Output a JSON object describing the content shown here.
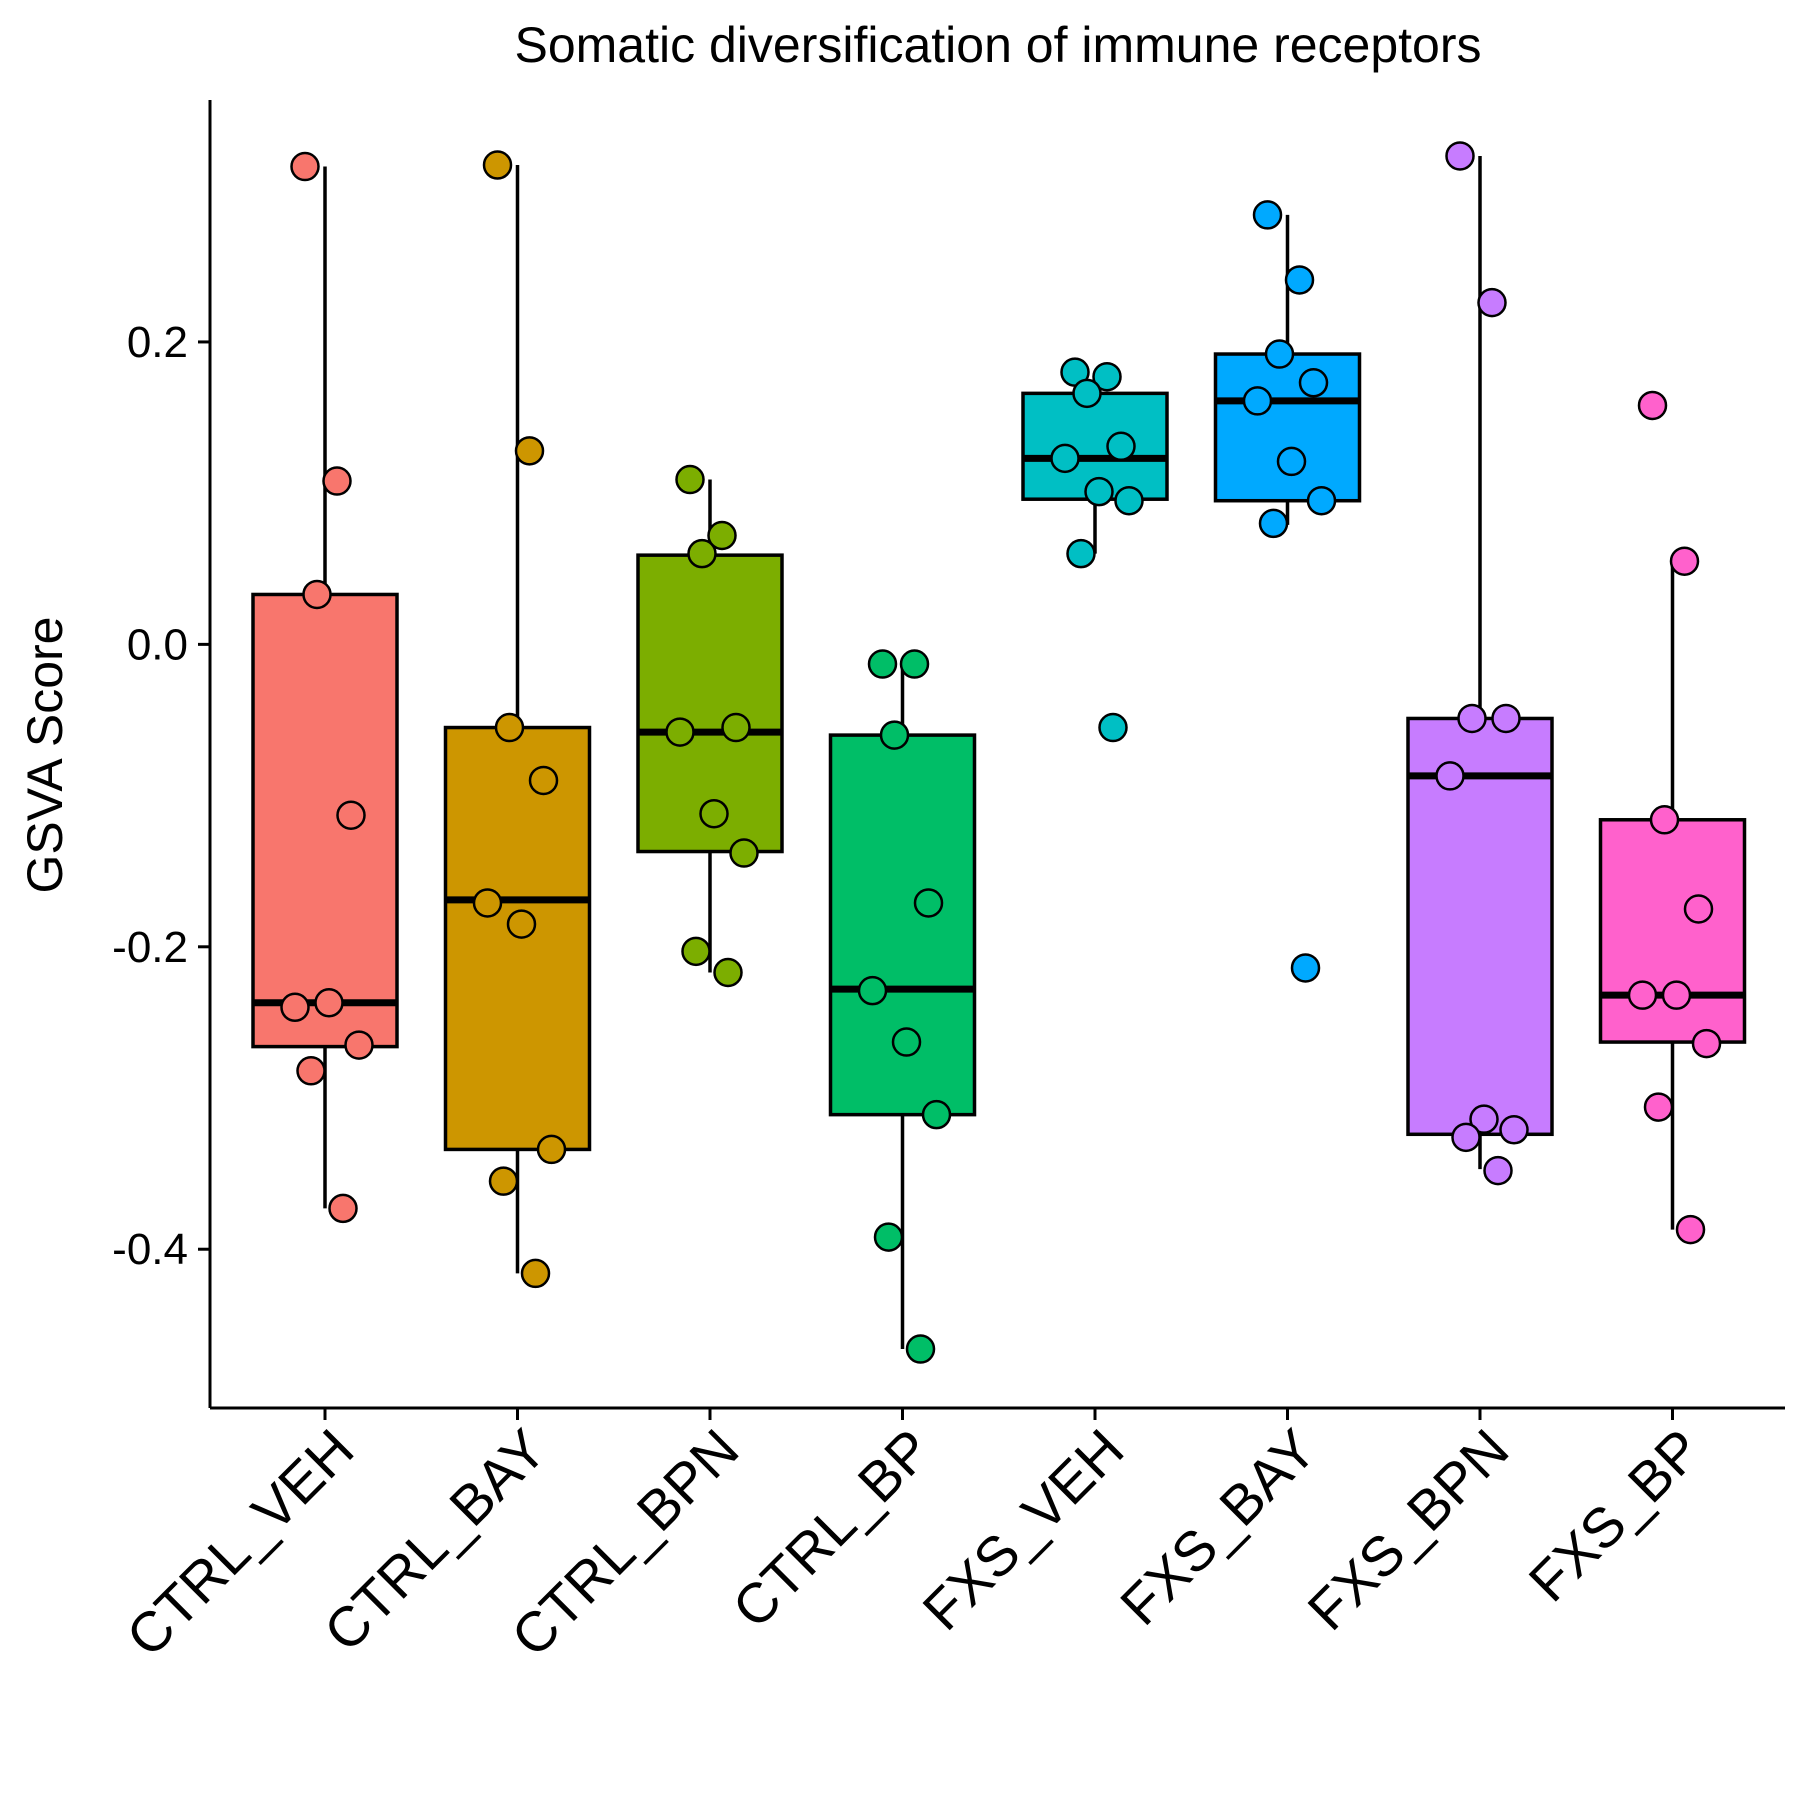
{
  "chart_data": {
    "type": "box",
    "title": "Somatic diversification of immune receptors",
    "xlabel": "",
    "ylabel": "GSVA Score",
    "ylim": [
      -0.505,
      0.36
    ],
    "yticks": [
      0.2,
      0.0,
      -0.2,
      -0.4
    ],
    "ytick_labels": [
      "0.2",
      "0.0",
      "-0.2",
      "-0.4"
    ],
    "grid": false,
    "legend": "none",
    "categories": [
      "CTRL_VEH",
      "CTRL_BAY",
      "CTRL_BPN",
      "CTRL_BP",
      "FXS_VEH",
      "FXS_BAY",
      "FXS_BPN",
      "FXS_BP"
    ],
    "colors": [
      "#F8766D",
      "#CD9600",
      "#7CAE00",
      "#00BE67",
      "#00BFC4",
      "#00A9FF",
      "#C77CFF",
      "#FF61CC"
    ],
    "boxes": [
      {
        "whisker_low": -0.373,
        "q1": -0.266,
        "median": -0.237,
        "q3": 0.033,
        "whisker_high": 0.316
      },
      {
        "whisker_low": -0.416,
        "q1": -0.334,
        "median": -0.169,
        "q3": -0.055,
        "whisker_high": 0.317
      },
      {
        "whisker_low": -0.217,
        "q1": -0.137,
        "median": -0.058,
        "q3": 0.059,
        "whisker_high": 0.109
      },
      {
        "whisker_low": -0.466,
        "q1": -0.311,
        "median": -0.228,
        "q3": -0.06,
        "whisker_high": -0.013
      },
      {
        "whisker_low": 0.06,
        "q1": 0.096,
        "median": 0.123,
        "q3": 0.166,
        "whisker_high": 0.178
      },
      {
        "whisker_low": 0.079,
        "q1": 0.095,
        "median": 0.161,
        "q3": 0.192,
        "whisker_high": 0.284
      },
      {
        "whisker_low": -0.347,
        "q1": -0.324,
        "median": -0.087,
        "q3": -0.049,
        "whisker_high": 0.323
      },
      {
        "whisker_low": -0.387,
        "q1": -0.263,
        "median": -0.232,
        "q3": -0.116,
        "whisker_high": 0.055
      }
    ],
    "points": [
      [
        0.316,
        0.108,
        0.033,
        -0.113,
        -0.24,
        -0.237,
        -0.265,
        -0.282,
        -0.373
      ],
      [
        0.317,
        0.128,
        -0.055,
        -0.09,
        -0.171,
        -0.185,
        -0.334,
        -0.355,
        -0.416
      ],
      [
        0.109,
        0.072,
        0.06,
        -0.055,
        -0.058,
        -0.112,
        -0.138,
        -0.203,
        -0.217
      ],
      [
        -0.013,
        -0.013,
        -0.06,
        -0.171,
        -0.229,
        -0.263,
        -0.311,
        -0.392,
        -0.466
      ],
      [
        0.18,
        0.177,
        0.166,
        0.131,
        0.123,
        0.101,
        0.095,
        0.06,
        -0.055
      ],
      [
        0.284,
        0.241,
        0.192,
        0.173,
        0.161,
        0.121,
        0.095,
        0.08,
        -0.214
      ],
      [
        0.323,
        0.226,
        -0.049,
        -0.049,
        -0.087,
        -0.314,
        -0.321,
        -0.326,
        -0.348
      ],
      [
        0.158,
        0.055,
        -0.116,
        -0.175,
        -0.232,
        -0.232,
        -0.264,
        -0.306,
        -0.387
      ]
    ]
  }
}
